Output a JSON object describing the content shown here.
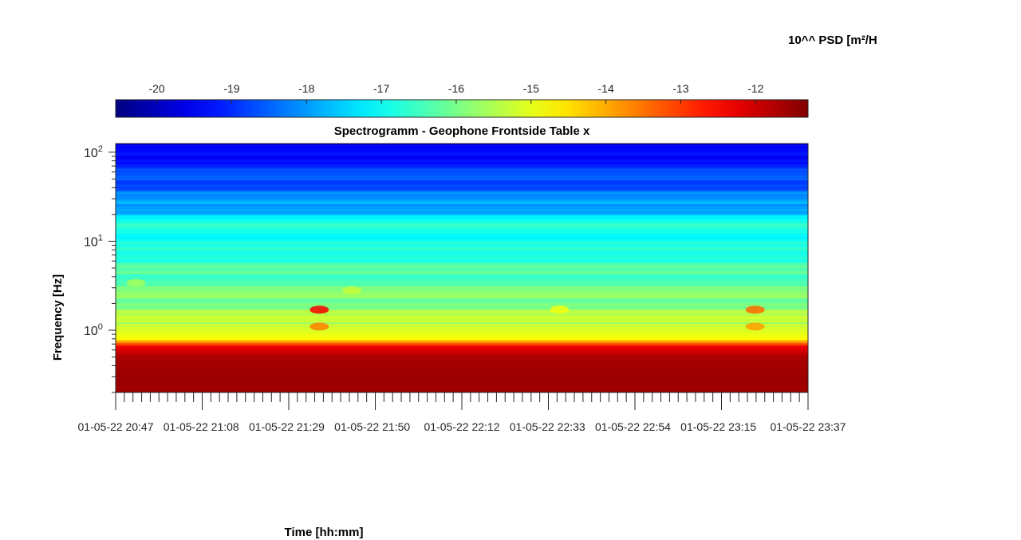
{
  "chart_data": {
    "type": "heatmap",
    "title": "Spectrogramm - Geophone Frontside Table x",
    "xlabel": "Time [hh:mm]",
    "ylabel": "Frequency [Hz]",
    "colorbar_label": "10^^ PSD [m²/H",
    "colormap": "jet",
    "clim": [
      -20.55,
      -11.3
    ],
    "colorbar_ticks": [
      "-20",
      "-19",
      "-18",
      "-17",
      "-16",
      "-15",
      "-14",
      "-13",
      "-12"
    ],
    "yscale": "log",
    "ylim": [
      0.2,
      125
    ],
    "y_ticks": [
      {
        "base": "10",
        "exp": "0"
      },
      {
        "base": "10",
        "exp": "1"
      },
      {
        "base": "10",
        "exp": "2"
      }
    ],
    "x_start": "01-05-22 20:47",
    "x_end": "01-05-22 23:37",
    "x_tick_labels": [
      "01-05-22 20:47",
      "01-05-22 21:08",
      "01-05-22 21:29",
      "01-05-22 21:50",
      "01-05-22 22:12",
      "01-05-22 22:33",
      "01-05-22 22:54",
      "01-05-22 23:15",
      "01-05-22 23:37"
    ],
    "psd_profile": {
      "frequency_hz": [
        0.2,
        0.3,
        0.5,
        0.65,
        0.8,
        1.0,
        1.5,
        2.5,
        4,
        6,
        8,
        10,
        15,
        20,
        30,
        50,
        80,
        125
      ],
      "log10_psd": [
        -11.6,
        -11.55,
        -11.7,
        -12.3,
        -14.8,
        -15.1,
        -15.6,
        -16.0,
        -16.3,
        -16.5,
        -16.7,
        -17.0,
        -16.6,
        -17.6,
        -18.2,
        -18.7,
        -19.2,
        -19.7
      ]
    },
    "hot_spots": [
      {
        "time": "01-05-22 21:37",
        "frequency_hz": 1.7,
        "log10_psd": -12.4
      },
      {
        "time": "01-05-22 21:37",
        "frequency_hz": 1.1,
        "log10_psd": -13.6
      },
      {
        "time": "01-05-22 23:24",
        "frequency_hz": 1.7,
        "log10_psd": -13.4
      },
      {
        "time": "01-05-22 23:24",
        "frequency_hz": 1.1,
        "log10_psd": -13.9
      },
      {
        "time": "01-05-22 21:45",
        "frequency_hz": 2.8,
        "log10_psd": -15.3
      },
      {
        "time": "01-05-22 22:36",
        "frequency_hz": 1.7,
        "log10_psd": -14.9
      },
      {
        "time": "01-05-22 20:52",
        "frequency_hz": 3.4,
        "log10_psd": -15.6
      }
    ],
    "grid": false
  }
}
